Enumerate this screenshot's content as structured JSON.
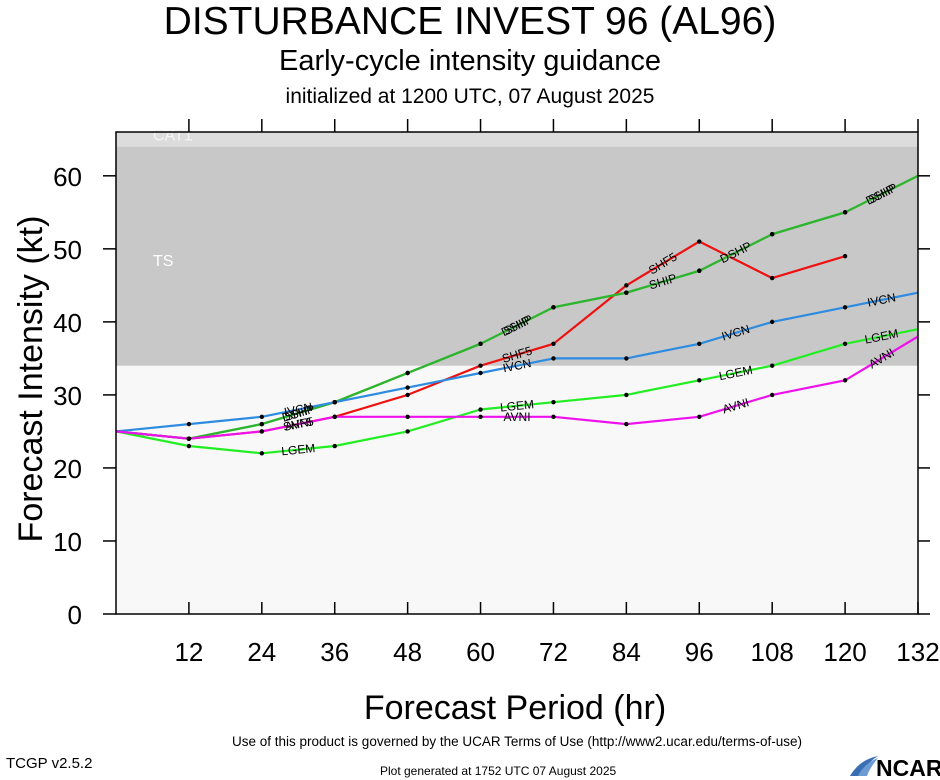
{
  "header": {
    "title": "DISTURBANCE INVEST 96 (AL96)",
    "subtitle": "Early-cycle intensity guidance",
    "init_line": "initialized at 1200 UTC, 07 August 2025"
  },
  "footer": {
    "terms": "Use of this product is governed by the UCAR Terms of Use (http://www2.ucar.edu/terms-of-use)",
    "version": "TCGP v2.5.2",
    "generated": "Plot generated at 1752 UTC   07 August 2025",
    "logo_text": "NCAR"
  },
  "chart_data": {
    "type": "line",
    "xlabel": "Forecast Period (hr)",
    "ylabel": "Forecast Intensity (kt)",
    "xlim": [
      0,
      132
    ],
    "ylim": [
      0,
      66
    ],
    "xticks": [
      12,
      24,
      36,
      48,
      60,
      72,
      84,
      96,
      108,
      120,
      132
    ],
    "yticks": [
      0,
      10,
      20,
      30,
      40,
      50,
      60
    ],
    "bands": [
      {
        "label": "TS",
        "from": 34,
        "to": 64,
        "color": "#c8c8c8"
      },
      {
        "label": "CAT1",
        "from": 64,
        "to": 83,
        "color": "#dcdcdc"
      }
    ],
    "below_band_color": "#f8f8f8",
    "series": [
      {
        "name": "SHF5",
        "color": "#ee1111",
        "x": [
          0,
          12,
          24,
          36,
          48,
          60,
          72,
          84,
          96,
          108,
          120
        ],
        "y": [
          25,
          24,
          25,
          27,
          30,
          34,
          37,
          45,
          51,
          46,
          49
        ],
        "labels_at": [
          24,
          60,
          84
        ]
      },
      {
        "name": "DSHP",
        "color": "#2db52d",
        "x": [
          0,
          12,
          24,
          36,
          48,
          60,
          72,
          84,
          96,
          108,
          120,
          132
        ],
        "y": [
          25,
          24,
          26,
          29,
          33,
          37,
          42,
          44,
          47,
          52,
          55,
          60
        ],
        "labels_at": [
          24,
          60,
          96,
          120
        ]
      },
      {
        "name": "SHIP",
        "color": "#2db52d",
        "x": [
          0,
          12,
          24,
          36,
          48,
          60,
          72,
          84,
          96,
          108,
          120,
          132
        ],
        "y": [
          25,
          24,
          26,
          29,
          33,
          37,
          42,
          44,
          47,
          52,
          55,
          60
        ],
        "labels_at": [
          24,
          60,
          84,
          120
        ]
      },
      {
        "name": "IVCN",
        "color": "#2d8be0",
        "x": [
          0,
          12,
          24,
          36,
          48,
          60,
          72,
          84,
          96,
          108,
          120,
          132
        ],
        "y": [
          25,
          26,
          27,
          29,
          31,
          33,
          35,
          35,
          37,
          40,
          42,
          44
        ],
        "labels_at": [
          24,
          60,
          96,
          120
        ]
      },
      {
        "name": "LGEM",
        "color": "#22ee22",
        "x": [
          0,
          12,
          24,
          36,
          48,
          60,
          72,
          84,
          96,
          108,
          120,
          132
        ],
        "y": [
          25,
          23,
          22,
          23,
          25,
          28,
          29,
          30,
          32,
          34,
          37,
          39
        ],
        "labels_at": [
          24,
          60,
          96,
          120
        ]
      },
      {
        "name": "AVNI",
        "color": "#ee11ee",
        "x": [
          0,
          12,
          24,
          36,
          48,
          60,
          72,
          84,
          96,
          108,
          120,
          132
        ],
        "y": [
          25,
          24,
          25,
          27,
          27,
          27,
          27,
          26,
          27,
          30,
          32,
          38
        ],
        "labels_at": [
          24,
          60,
          96,
          120
        ]
      }
    ]
  }
}
